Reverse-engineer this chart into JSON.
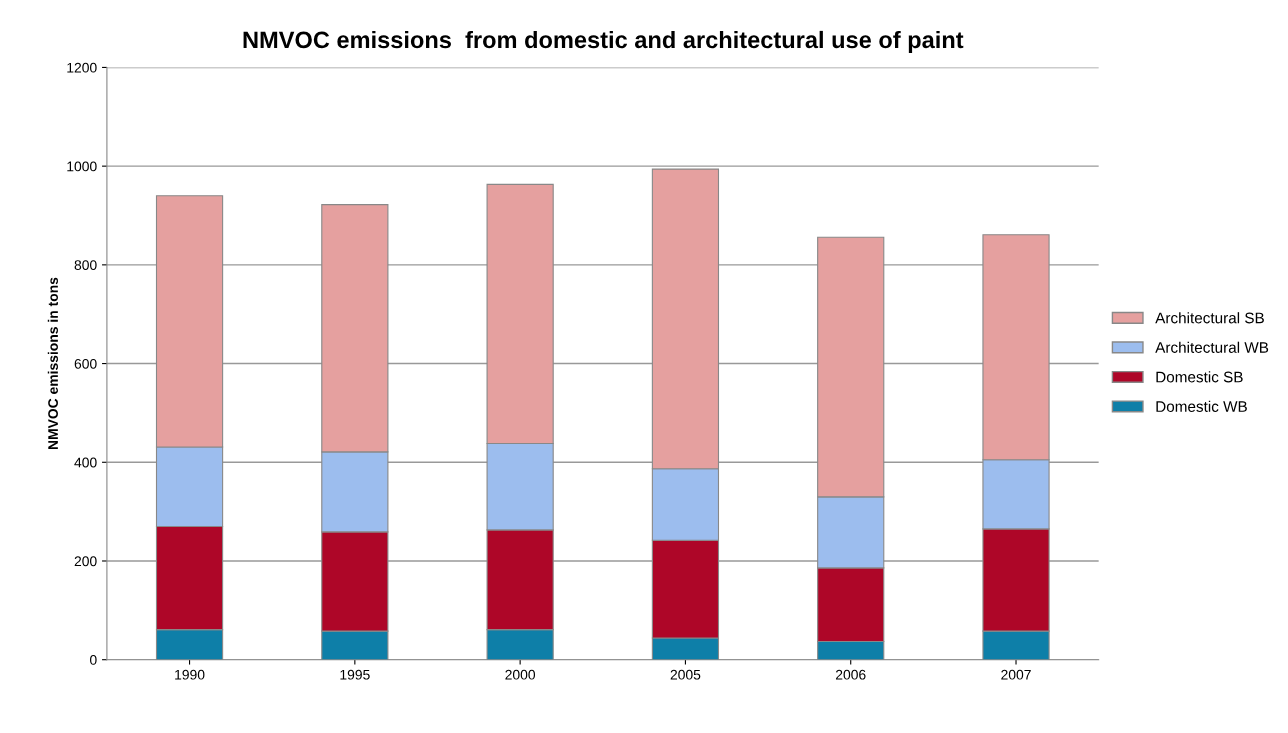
{
  "chart_data": {
    "type": "bar",
    "title": "NMVOC emissions  from domestic and architectural use of paint",
    "ylabel": "NMVOC emissions in tons",
    "categories": [
      "1990",
      "1995",
      "2000",
      "2005",
      "2006",
      "2007"
    ],
    "stacked": true,
    "series": [
      {
        "name": "Domestic WB",
        "color": "#0e7fa8",
        "values": [
          61,
          58,
          61,
          44,
          37,
          58
        ]
      },
      {
        "name": "Domestic SB",
        "color": "#ae0628",
        "values": [
          209,
          201,
          202,
          198,
          149,
          207
        ]
      },
      {
        "name": "Architectural WB",
        "color": "#9cbdee",
        "values": [
          161,
          162,
          175,
          145,
          144,
          140
        ]
      },
      {
        "name": "Architectural SB",
        "color": "#e5a09f",
        "values": [
          509,
          501,
          525,
          607,
          526,
          456
        ]
      }
    ],
    "ylim": [
      0,
      1200
    ],
    "yticks": [
      0,
      200,
      400,
      600,
      800,
      1000,
      1200
    ],
    "grid": "y",
    "legend": "right"
  }
}
